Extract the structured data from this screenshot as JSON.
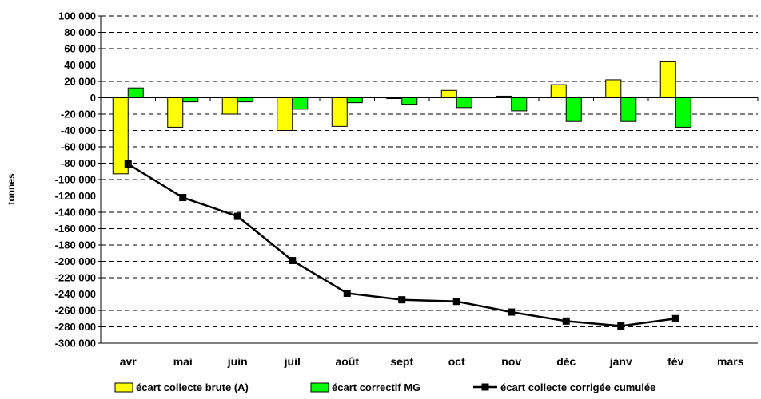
{
  "chart_data": {
    "type": "bar",
    "categories": [
      "avr",
      "mai",
      "juin",
      "juil",
      "août",
      "sept",
      "oct",
      "nov",
      "déc",
      "janv",
      "fév",
      "mars"
    ],
    "ylabel": "tonnes",
    "ylim": [
      -300000,
      100000
    ],
    "yticks": [
      100000,
      80000,
      60000,
      40000,
      20000,
      0,
      -20000,
      -40000,
      -60000,
      -80000,
      -100000,
      -120000,
      -140000,
      -160000,
      -180000,
      -200000,
      -220000,
      -240000,
      -260000,
      -280000,
      -300000
    ],
    "ytick_labels": [
      "100 000",
      "80 000",
      "60 000",
      "40 000",
      "20 000",
      "0",
      "-20 000",
      "-40 000",
      "-60 000",
      "-80 000",
      "-100 000",
      "-120 000",
      "-140 000",
      "-160 000",
      "-180 000",
      "-200 000",
      "-220 000",
      "-240 000",
      "-260 000",
      "-280 000",
      "-300 000"
    ],
    "grid": "horizontal-dashed",
    "legend_position": "bottom",
    "series": [
      {
        "name": "écart collecte brute (A)",
        "type": "bar",
        "color": "#ffff00",
        "values": [
          -93000,
          -36000,
          -20000,
          -40000,
          -35000,
          0,
          9000,
          2000,
          16000,
          22000,
          44000,
          null
        ]
      },
      {
        "name": "écart correctif MG",
        "type": "bar",
        "color": "#00ff00",
        "values": [
          12000,
          -5000,
          -5000,
          -14000,
          -6000,
          -8000,
          -12000,
          -16000,
          -29000,
          -29000,
          -36000,
          null
        ]
      },
      {
        "name": "écart collecte corrigée cumulée",
        "type": "line",
        "color": "#000000",
        "values": [
          -81000,
          -122000,
          -145000,
          -199000,
          -239000,
          -247000,
          -249000,
          -262000,
          -273000,
          -279000,
          -270000,
          null
        ]
      }
    ]
  }
}
